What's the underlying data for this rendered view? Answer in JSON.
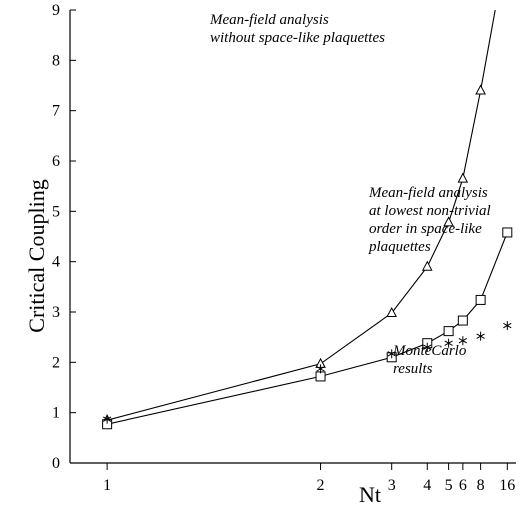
{
  "chart_data": {
    "type": "line",
    "title": "",
    "xlabel": "Nt",
    "ylabel": "Critical Coupling",
    "x_ticks": [
      1,
      2,
      3,
      4,
      5,
      6,
      8,
      16
    ],
    "x_tick_labels": [
      "1",
      "2",
      "3",
      "4",
      "5",
      "6",
      "8",
      "16"
    ],
    "y_ticks": [
      0,
      1,
      2,
      3,
      4,
      5,
      6,
      7,
      8,
      9
    ],
    "y_tick_labels": [
      "0",
      "1",
      "2",
      "3",
      "4",
      "5",
      "6",
      "7",
      "8",
      "9"
    ],
    "x_scale": "reciprocal",
    "ylim": [
      0,
      9
    ],
    "grid": false,
    "series": [
      {
        "marker": "triangle",
        "line": true,
        "x": [
          1,
          2,
          3,
          4,
          5,
          6,
          8
        ],
        "y": [
          0.85,
          1.97,
          2.98,
          3.9,
          4.78,
          5.65,
          7.4
        ],
        "line_end": {
          "x": 11,
          "y": 9
        }
      },
      {
        "marker": "square",
        "line": true,
        "x": [
          1,
          2,
          3,
          4,
          5,
          6,
          8,
          16
        ],
        "y": [
          0.77,
          1.72,
          2.1,
          2.38,
          2.62,
          2.83,
          3.24,
          4.58
        ]
      },
      {
        "marker": "asterisk",
        "line": false,
        "x": [
          1,
          2,
          3,
          4,
          5,
          6,
          8,
          16
        ],
        "y": [
          0.87,
          1.87,
          2.17,
          2.3,
          2.38,
          2.43,
          2.52,
          2.73
        ]
      }
    ],
    "annotations": [
      {
        "lines": [
          "Mean-field analysis",
          "without space-like plaquettes"
        ]
      },
      {
        "lines": [
          "Mean-field analysis",
          "at lowest non-trivial",
          "order in space-like",
          "plaquettes"
        ]
      },
      {
        "lines": [
          "MonteCarlo",
          "results"
        ]
      }
    ]
  }
}
